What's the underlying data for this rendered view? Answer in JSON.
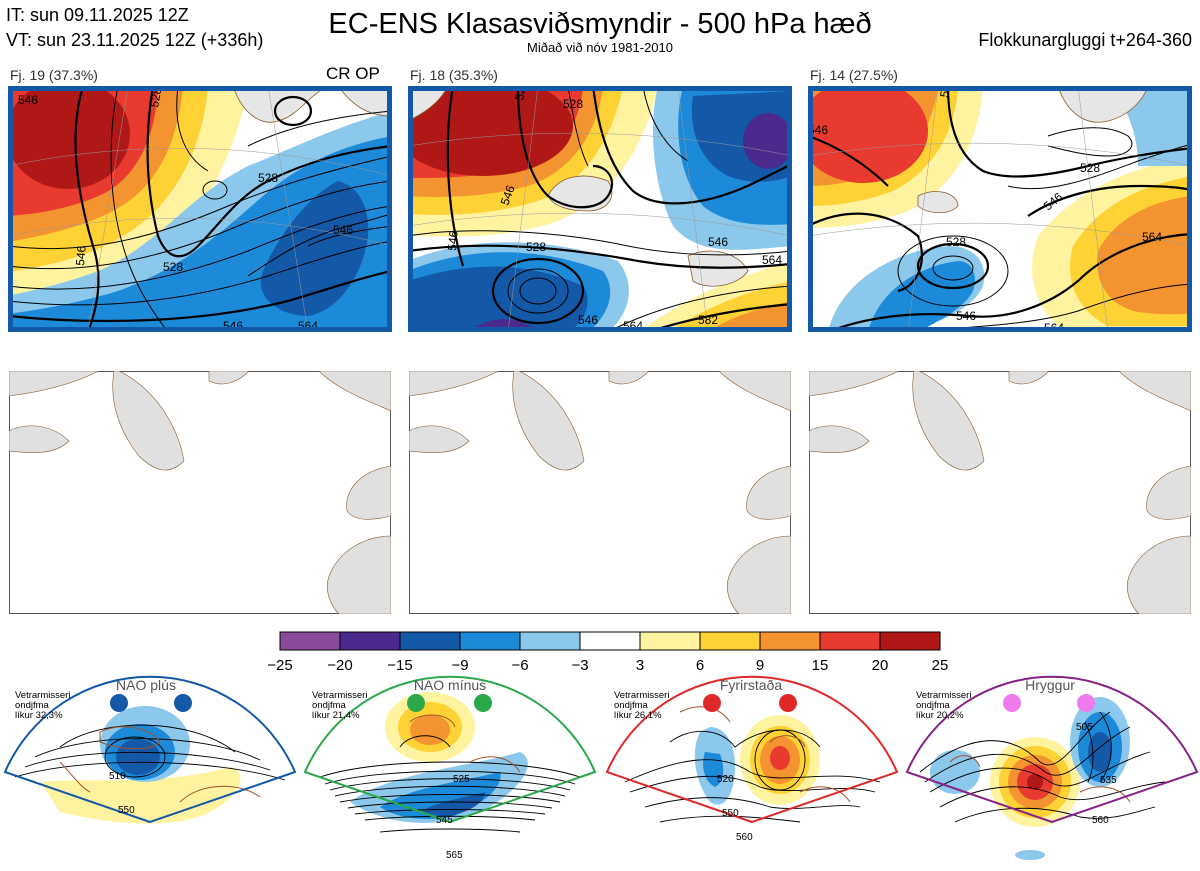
{
  "header": {
    "it": "IT: sun 09.11.2025 12Z",
    "vt": "VT: sun 23.11.2025 12Z  (+336h)",
    "title": "EC-ENS Klasasviðsmyndir - 500 hPa hæð",
    "subtitle": "Miðað við nóv 1981-2010",
    "window": "Flokkunargluggi t+264-360"
  },
  "clusters": [
    {
      "label": "Fj. 19 (37.3%)",
      "tag": "CR OP",
      "contours": [
        "546",
        "528",
        "528",
        "528",
        "546",
        "546",
        "564",
        "546"
      ]
    },
    {
      "label": "Fj. 18 (35.3%)",
      "contours": [
        "546",
        "528",
        "528",
        "546",
        "528",
        "546",
        "564",
        "546",
        "564",
        "582"
      ]
    },
    {
      "label": "Fj. 14 (27.5%)",
      "contours": [
        "546",
        "528",
        "528",
        "546",
        "564",
        "546",
        "564",
        "528"
      ]
    }
  ],
  "colorbar": {
    "ticks": [
      "−25",
      "−20",
      "−15",
      "−9",
      "−6",
      "−3",
      "3",
      "6",
      "9",
      "15",
      "20",
      "25"
    ],
    "colors": [
      "#8a4a9c",
      "#4a2a8c",
      "#1458a8",
      "#1c8ad8",
      "#8cc8ec",
      "#ffffff",
      "#fff3a0",
      "#fed234",
      "#f49430",
      "#e83a2e",
      "#b01818"
    ]
  },
  "regimes": [
    {
      "name": "NAO plús",
      "info": [
        "Vetrarmisseri",
        "ondjfma",
        "líkur 32,3%"
      ],
      "color": "#1458a8",
      "contours": [
        "510",
        "550"
      ]
    },
    {
      "name": "NAO mínus",
      "info": [
        "Vetrarmisseri",
        "ondjfma",
        "líkur 21,4%"
      ],
      "color": "#2aa84a",
      "contours": [
        "525",
        "545",
        "565"
      ]
    },
    {
      "name": "Fyrirstaða",
      "info": [
        "Vetrarmisseri",
        "ondjfma",
        "líkur 26,1%"
      ],
      "color": "#e02828",
      "contours": [
        "520",
        "550",
        "560"
      ]
    },
    {
      "name": "Hryggur",
      "info": [
        "Vetrarmisseri",
        "ondjfma",
        "líkur 20,2%"
      ],
      "color": "#882288",
      "contours": [
        "505",
        "535",
        "560"
      ]
    }
  ],
  "chart_data": {
    "type": "heatmap",
    "title": "EC-ENS Klasasviðsmyndir - 500 hPa hæð",
    "subtitle": "Miðað við nóv 1981-2010",
    "colorbar_levels": [
      -25,
      -20,
      -15,
      -9,
      -6,
      -3,
      3,
      6,
      9,
      15,
      20,
      25
    ],
    "clusters": [
      {
        "label": "Fj. 19 (37.3%)",
        "probability_pct": 37.3,
        "contour_levels": [
          528,
          546,
          564
        ]
      },
      {
        "label": "Fj. 18 (35.3%)",
        "probability_pct": 35.3,
        "contour_levels": [
          528,
          546,
          564,
          582
        ]
      },
      {
        "label": "Fj. 14 (27.5%)",
        "probability_pct": 27.5,
        "contour_levels": [
          528,
          546,
          564
        ]
      }
    ],
    "regimes": [
      {
        "name": "NAO plús",
        "likelihood_pct": 32.3
      },
      {
        "name": "NAO mínus",
        "likelihood_pct": 21.4
      },
      {
        "name": "Fyrirstaða",
        "likelihood_pct": 26.1
      },
      {
        "name": "Hryggur",
        "likelihood_pct": 20.2
      }
    ]
  }
}
